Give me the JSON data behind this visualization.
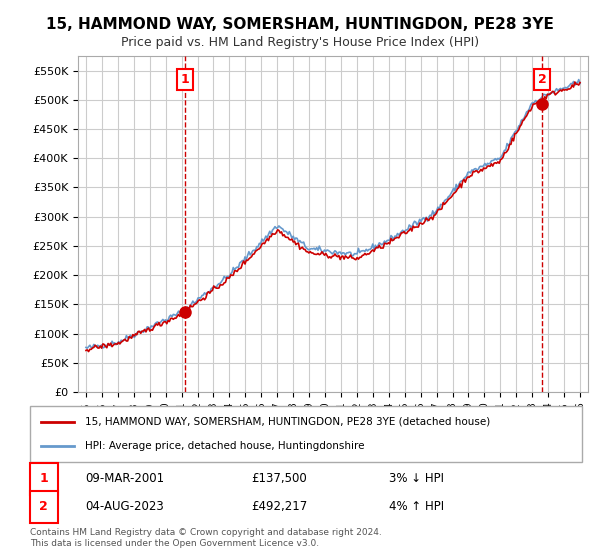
{
  "title": "15, HAMMOND WAY, SOMERSHAM, HUNTINGDON, PE28 3YE",
  "subtitle": "Price paid vs. HM Land Registry's House Price Index (HPI)",
  "ylabel": "",
  "ylim": [
    0,
    575000
  ],
  "yticks": [
    0,
    50000,
    100000,
    150000,
    200000,
    250000,
    300000,
    350000,
    400000,
    450000,
    500000,
    550000
  ],
  "background_color": "#ffffff",
  "plot_bg_color": "#ffffff",
  "grid_color": "#cccccc",
  "legend_label_red": "15, HAMMOND WAY, SOMERSHAM, HUNTINGDON, PE28 3YE (detached house)",
  "legend_label_blue": "HPI: Average price, detached house, Huntingdonshire",
  "point1_label": "1",
  "point1_date": "09-MAR-2001",
  "point1_price": "£137,500",
  "point1_hpi": "3% ↓ HPI",
  "point2_label": "2",
  "point2_date": "04-AUG-2023",
  "point2_price": "£492,217",
  "point2_hpi": "4% ↑ HPI",
  "footer": "Contains HM Land Registry data © Crown copyright and database right 2024.\nThis data is licensed under the Open Government Licence v3.0.",
  "red_color": "#cc0000",
  "blue_color": "#6699cc",
  "point_marker_color": "#cc0000",
  "dashed_line_color": "#cc0000"
}
